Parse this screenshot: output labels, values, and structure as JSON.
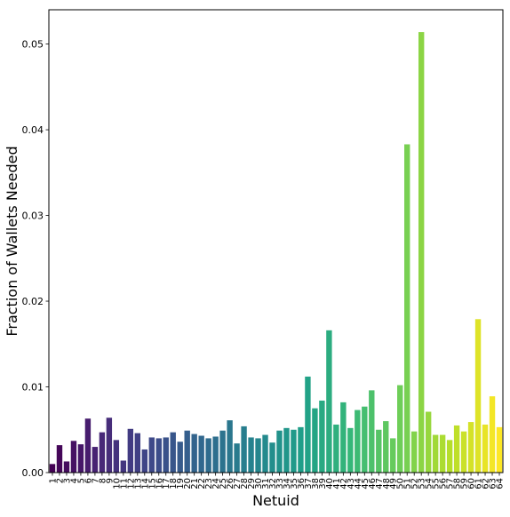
{
  "chart_data": {
    "type": "bar",
    "xlabel": "Netuid",
    "ylabel": "Fraction of Wallets Needed",
    "ylim": [
      0,
      0.054
    ],
    "yticks": [
      "0.00",
      "0.01",
      "0.02",
      "0.03",
      "0.04",
      "0.05"
    ],
    "ytick_values": [
      0,
      0.01,
      0.02,
      0.03,
      0.04,
      0.05
    ],
    "colormap": "viridis",
    "colormap_stops": [
      "#440154",
      "#482878",
      "#3e4989",
      "#31688e",
      "#26828e",
      "#1f9e89",
      "#35b779",
      "#6ece58",
      "#b5de2b",
      "#fde725"
    ],
    "categories": [
      "1",
      "2",
      "3",
      "4",
      "5",
      "6",
      "7",
      "8",
      "9",
      "10",
      "11",
      "12",
      "13",
      "14",
      "15",
      "16",
      "17",
      "18",
      "19",
      "20",
      "21",
      "22",
      "23",
      "24",
      "25",
      "26",
      "27",
      "28",
      "29",
      "30",
      "31",
      "32",
      "33",
      "34",
      "35",
      "36",
      "37",
      "38",
      "39",
      "40",
      "41",
      "42",
      "43",
      "44",
      "45",
      "46",
      "47",
      "48",
      "49",
      "50",
      "51",
      "52",
      "53",
      "54",
      "55",
      "56",
      "57",
      "58",
      "59",
      "60",
      "61",
      "62",
      "63",
      "64"
    ],
    "values": [
      0.001,
      0.0032,
      0.0013,
      0.0037,
      0.0033,
      0.0063,
      0.003,
      0.0047,
      0.0064,
      0.0038,
      0.0014,
      0.0051,
      0.0046,
      0.0027,
      0.0041,
      0.004,
      0.0041,
      0.0047,
      0.0036,
      0.0049,
      0.0045,
      0.0043,
      0.004,
      0.0042,
      0.0049,
      0.0061,
      0.0034,
      0.0054,
      0.0041,
      0.004,
      0.0044,
      0.0035,
      0.0049,
      0.0052,
      0.005,
      0.0053,
      0.0112,
      0.0075,
      0.0084,
      0.0166,
      0.0056,
      0.0082,
      0.0052,
      0.0073,
      0.0077,
      0.0096,
      0.005,
      0.006,
      0.004,
      0.0102,
      0.0383,
      0.0048,
      0.0514,
      0.0071,
      0.0044,
      0.0044,
      0.0038,
      0.0055,
      0.0048,
      0.0059,
      0.0179,
      0.0056,
      0.0089,
      0.0053
    ],
    "grid": false,
    "legend": "none"
  }
}
